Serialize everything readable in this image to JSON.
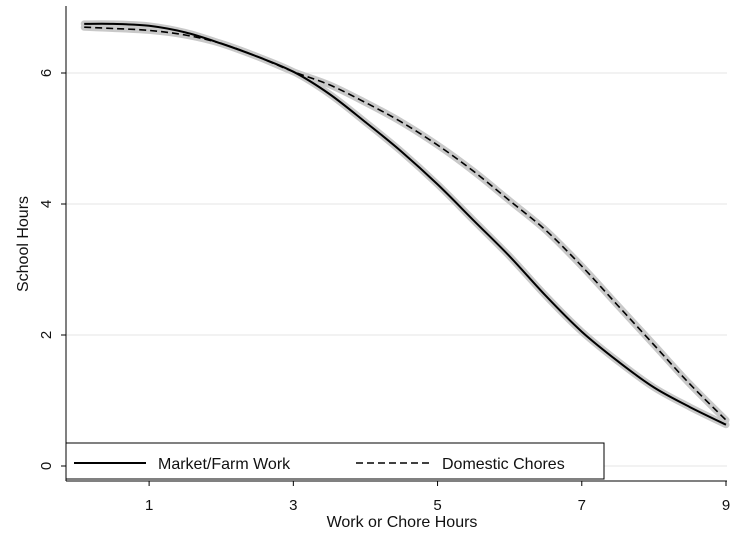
{
  "chart_data": {
    "type": "line",
    "xlabel": "Work or Chore Hours",
    "ylabel": "School Hours",
    "xlim": [
      0,
      9
    ],
    "ylim": [
      0,
      6.9
    ],
    "x_ticks": [
      1,
      3,
      5,
      7,
      9
    ],
    "x_tick_labels": [
      "1",
      "3",
      "5",
      "7",
      "9"
    ],
    "y_ticks": [
      0,
      2,
      4,
      6
    ],
    "y_tick_labels": [
      "0",
      "2",
      "4",
      "6"
    ],
    "grid": "horizontal",
    "legend_position": "bottom-left",
    "confidence_band": true,
    "series": [
      {
        "name": "Market/Farm Work",
        "line_style": "solid",
        "color": "#000000",
        "x": [
          0.1,
          0.5,
          1,
          1.5,
          2,
          2.5,
          3,
          3.5,
          4,
          4.5,
          5,
          5.5,
          6,
          6.5,
          7,
          7.5,
          8,
          8.5,
          9
        ],
        "values": [
          6.75,
          6.75,
          6.72,
          6.62,
          6.45,
          6.25,
          6.02,
          5.68,
          5.25,
          4.8,
          4.3,
          3.75,
          3.2,
          2.6,
          2.05,
          1.6,
          1.2,
          0.9,
          0.63
        ]
      },
      {
        "name": "Domestic Chores",
        "line_style": "dashed",
        "color": "#000000",
        "x": [
          0.1,
          0.5,
          1,
          1.5,
          2,
          2.5,
          3,
          3.5,
          4,
          4.5,
          5,
          5.5,
          6,
          6.5,
          7,
          7.5,
          8,
          8.5,
          9
        ],
        "values": [
          6.7,
          6.68,
          6.65,
          6.58,
          6.45,
          6.25,
          6.02,
          5.82,
          5.55,
          5.25,
          4.9,
          4.5,
          4.05,
          3.6,
          3.05,
          2.45,
          1.85,
          1.25,
          0.7
        ]
      }
    ],
    "colors": {
      "band": "#c9c9c9",
      "grid": "#e6e6e6",
      "axis": "#000000"
    }
  }
}
